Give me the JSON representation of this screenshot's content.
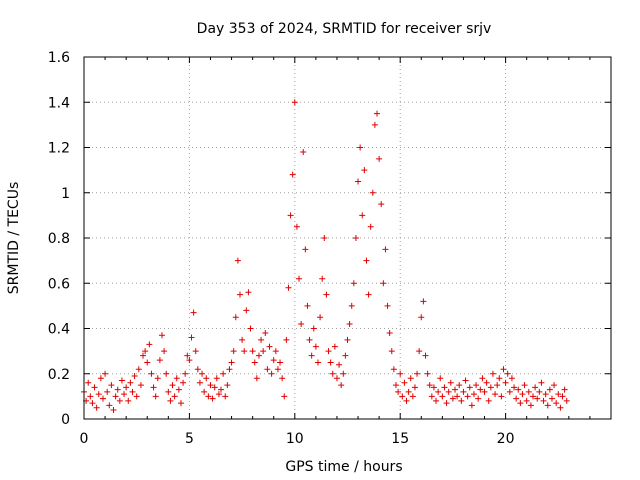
{
  "chart_data": {
    "type": "scatter",
    "title": "Day 353 of 2024, SRMTID for receiver srjv",
    "xlabel": "GPS time / hours",
    "ylabel": "SRMTID / TECUs",
    "xlim": [
      0,
      25
    ],
    "ylim": [
      0,
      1.6
    ],
    "xticks": [
      "0",
      "5",
      "10",
      "15",
      "20"
    ],
    "yticks": [
      "0",
      "0.2",
      "0.4",
      "0.6",
      "0.8",
      "1",
      "1.2",
      "1.4",
      "1.6"
    ],
    "grid": true,
    "marker": "+",
    "color": "#e00000",
    "series": [
      {
        "name": "SRMTID",
        "points": [
          [
            0.0,
            0.12
          ],
          [
            0.1,
            0.08
          ],
          [
            0.2,
            0.16
          ],
          [
            0.3,
            0.1
          ],
          [
            0.4,
            0.07
          ],
          [
            0.5,
            0.14
          ],
          [
            0.6,
            0.05
          ],
          [
            0.7,
            0.11
          ],
          [
            0.8,
            0.18
          ],
          [
            0.9,
            0.09
          ],
          [
            1.0,
            0.2
          ],
          [
            1.1,
            0.12
          ],
          [
            1.2,
            0.06
          ],
          [
            1.3,
            0.15
          ],
          [
            1.4,
            0.04
          ],
          [
            1.5,
            0.1
          ],
          [
            1.6,
            0.13
          ],
          [
            1.7,
            0.08
          ],
          [
            1.8,
            0.17
          ],
          [
            1.9,
            0.11
          ],
          [
            2.0,
            0.14
          ],
          [
            2.1,
            0.08
          ],
          [
            2.2,
            0.16
          ],
          [
            2.3,
            0.12
          ],
          [
            2.4,
            0.19
          ],
          [
            2.5,
            0.1
          ],
          [
            2.6,
            0.22
          ],
          [
            2.7,
            0.15
          ],
          [
            2.8,
            0.28
          ],
          [
            2.9,
            0.3
          ],
          [
            3.0,
            0.25
          ],
          [
            3.1,
            0.33
          ],
          [
            3.2,
            0.2
          ],
          [
            3.3,
            0.14
          ],
          [
            3.4,
            0.1
          ],
          [
            3.5,
            0.18
          ],
          [
            3.6,
            0.26
          ],
          [
            3.7,
            0.37
          ],
          [
            3.8,
            0.3
          ],
          [
            3.9,
            0.2
          ],
          [
            4.0,
            0.12
          ],
          [
            4.1,
            0.08
          ],
          [
            4.2,
            0.15
          ],
          [
            4.3,
            0.1
          ],
          [
            4.4,
            0.18
          ],
          [
            4.5,
            0.13
          ],
          [
            4.6,
            0.07
          ],
          [
            4.7,
            0.16
          ],
          [
            4.8,
            0.2
          ],
          [
            4.9,
            0.28
          ],
          [
            5.0,
            0.26
          ],
          [
            5.1,
            0.36
          ],
          [
            5.2,
            0.47
          ],
          [
            5.3,
            0.3
          ],
          [
            5.4,
            0.22
          ],
          [
            5.5,
            0.16
          ],
          [
            5.6,
            0.2
          ],
          [
            5.7,
            0.12
          ],
          [
            5.8,
            0.18
          ],
          [
            5.9,
            0.1
          ],
          [
            6.0,
            0.15
          ],
          [
            6.1,
            0.09
          ],
          [
            6.2,
            0.14
          ],
          [
            6.3,
            0.18
          ],
          [
            6.4,
            0.11
          ],
          [
            6.5,
            0.13
          ],
          [
            6.6,
            0.2
          ],
          [
            6.7,
            0.1
          ],
          [
            6.8,
            0.15
          ],
          [
            6.9,
            0.22
          ],
          [
            7.0,
            0.25
          ],
          [
            7.1,
            0.3
          ],
          [
            7.2,
            0.45
          ],
          [
            7.3,
            0.7
          ],
          [
            7.4,
            0.55
          ],
          [
            7.5,
            0.35
          ],
          [
            7.6,
            0.3
          ],
          [
            7.7,
            0.48
          ],
          [
            7.8,
            0.56
          ],
          [
            7.9,
            0.4
          ],
          [
            8.0,
            0.3
          ],
          [
            8.1,
            0.25
          ],
          [
            8.2,
            0.18
          ],
          [
            8.3,
            0.28
          ],
          [
            8.4,
            0.35
          ],
          [
            8.5,
            0.3
          ],
          [
            8.6,
            0.38
          ],
          [
            8.7,
            0.22
          ],
          [
            8.8,
            0.32
          ],
          [
            8.9,
            0.2
          ],
          [
            9.0,
            0.26
          ],
          [
            9.1,
            0.3
          ],
          [
            9.2,
            0.22
          ],
          [
            9.3,
            0.25
          ],
          [
            9.4,
            0.18
          ],
          [
            9.5,
            0.1
          ],
          [
            9.6,
            0.35
          ],
          [
            9.7,
            0.58
          ],
          [
            9.8,
            0.9
          ],
          [
            9.9,
            1.08
          ],
          [
            10.0,
            1.4
          ],
          [
            10.1,
            0.85
          ],
          [
            10.2,
            0.62
          ],
          [
            10.3,
            0.42
          ],
          [
            10.4,
            1.18
          ],
          [
            10.5,
            0.75
          ],
          [
            10.6,
            0.5
          ],
          [
            10.7,
            0.35
          ],
          [
            10.8,
            0.28
          ],
          [
            10.9,
            0.4
          ],
          [
            11.0,
            0.32
          ],
          [
            11.1,
            0.25
          ],
          [
            11.2,
            0.45
          ],
          [
            11.3,
            0.62
          ],
          [
            11.4,
            0.8
          ],
          [
            11.5,
            0.55
          ],
          [
            11.6,
            0.3
          ],
          [
            11.7,
            0.25
          ],
          [
            11.8,
            0.2
          ],
          [
            11.9,
            0.32
          ],
          [
            12.0,
            0.18
          ],
          [
            12.1,
            0.24
          ],
          [
            12.2,
            0.15
          ],
          [
            12.3,
            0.2
          ],
          [
            12.4,
            0.28
          ],
          [
            12.5,
            0.35
          ],
          [
            12.6,
            0.42
          ],
          [
            12.7,
            0.5
          ],
          [
            12.8,
            0.6
          ],
          [
            12.9,
            0.8
          ],
          [
            13.0,
            1.05
          ],
          [
            13.1,
            1.2
          ],
          [
            13.2,
            0.9
          ],
          [
            13.3,
            1.1
          ],
          [
            13.4,
            0.7
          ],
          [
            13.5,
            0.55
          ],
          [
            13.6,
            0.85
          ],
          [
            13.7,
            1.0
          ],
          [
            13.8,
            1.3
          ],
          [
            13.9,
            1.35
          ],
          [
            14.0,
            1.15
          ],
          [
            14.1,
            0.95
          ],
          [
            14.2,
            0.6
          ],
          [
            14.3,
            0.75
          ],
          [
            14.4,
            0.5
          ],
          [
            14.5,
            0.38
          ],
          [
            14.6,
            0.3
          ],
          [
            14.7,
            0.22
          ],
          [
            14.8,
            0.15
          ],
          [
            14.9,
            0.12
          ],
          [
            15.0,
            0.2
          ],
          [
            15.1,
            0.1
          ],
          [
            15.2,
            0.16
          ],
          [
            15.3,
            0.08
          ],
          [
            15.4,
            0.12
          ],
          [
            15.5,
            0.18
          ],
          [
            15.6,
            0.1
          ],
          [
            15.7,
            0.14
          ],
          [
            15.8,
            0.2
          ],
          [
            15.9,
            0.3
          ],
          [
            16.0,
            0.45
          ],
          [
            16.1,
            0.52
          ],
          [
            16.2,
            0.28
          ],
          [
            16.3,
            0.2
          ],
          [
            16.4,
            0.15
          ],
          [
            16.5,
            0.1
          ],
          [
            16.6,
            0.14
          ],
          [
            16.7,
            0.08
          ],
          [
            16.8,
            0.12
          ],
          [
            16.9,
            0.18
          ],
          [
            17.0,
            0.1
          ],
          [
            17.1,
            0.14
          ],
          [
            17.2,
            0.07
          ],
          [
            17.3,
            0.12
          ],
          [
            17.4,
            0.16
          ],
          [
            17.5,
            0.09
          ],
          [
            17.6,
            0.13
          ],
          [
            17.7,
            0.1
          ],
          [
            17.8,
            0.15
          ],
          [
            17.9,
            0.08
          ],
          [
            18.0,
            0.12
          ],
          [
            18.1,
            0.17
          ],
          [
            18.2,
            0.1
          ],
          [
            18.3,
            0.14
          ],
          [
            18.4,
            0.06
          ],
          [
            18.5,
            0.11
          ],
          [
            18.6,
            0.15
          ],
          [
            18.7,
            0.09
          ],
          [
            18.8,
            0.13
          ],
          [
            18.9,
            0.18
          ],
          [
            19.0,
            0.12
          ],
          [
            19.1,
            0.16
          ],
          [
            19.2,
            0.08
          ],
          [
            19.3,
            0.14
          ],
          [
            19.4,
            0.2
          ],
          [
            19.5,
            0.11
          ],
          [
            19.6,
            0.15
          ],
          [
            19.7,
            0.18
          ],
          [
            19.8,
            0.1
          ],
          [
            19.9,
            0.22
          ],
          [
            20.0,
            0.16
          ],
          [
            20.1,
            0.2
          ],
          [
            20.2,
            0.12
          ],
          [
            20.3,
            0.18
          ],
          [
            20.4,
            0.14
          ],
          [
            20.5,
            0.09
          ],
          [
            20.6,
            0.13
          ],
          [
            20.7,
            0.07
          ],
          [
            20.8,
            0.11
          ],
          [
            20.9,
            0.15
          ],
          [
            21.0,
            0.08
          ],
          [
            21.1,
            0.12
          ],
          [
            21.2,
            0.06
          ],
          [
            21.3,
            0.1
          ],
          [
            21.4,
            0.14
          ],
          [
            21.5,
            0.09
          ],
          [
            21.6,
            0.12
          ],
          [
            21.7,
            0.16
          ],
          [
            21.8,
            0.08
          ],
          [
            21.9,
            0.11
          ],
          [
            22.0,
            0.06
          ],
          [
            22.1,
            0.13
          ],
          [
            22.2,
            0.09
          ],
          [
            22.3,
            0.15
          ],
          [
            22.4,
            0.07
          ],
          [
            22.5,
            0.11
          ],
          [
            22.6,
            0.05
          ],
          [
            22.7,
            0.1
          ],
          [
            22.8,
            0.13
          ],
          [
            22.9,
            0.08
          ]
        ]
      }
    ]
  }
}
